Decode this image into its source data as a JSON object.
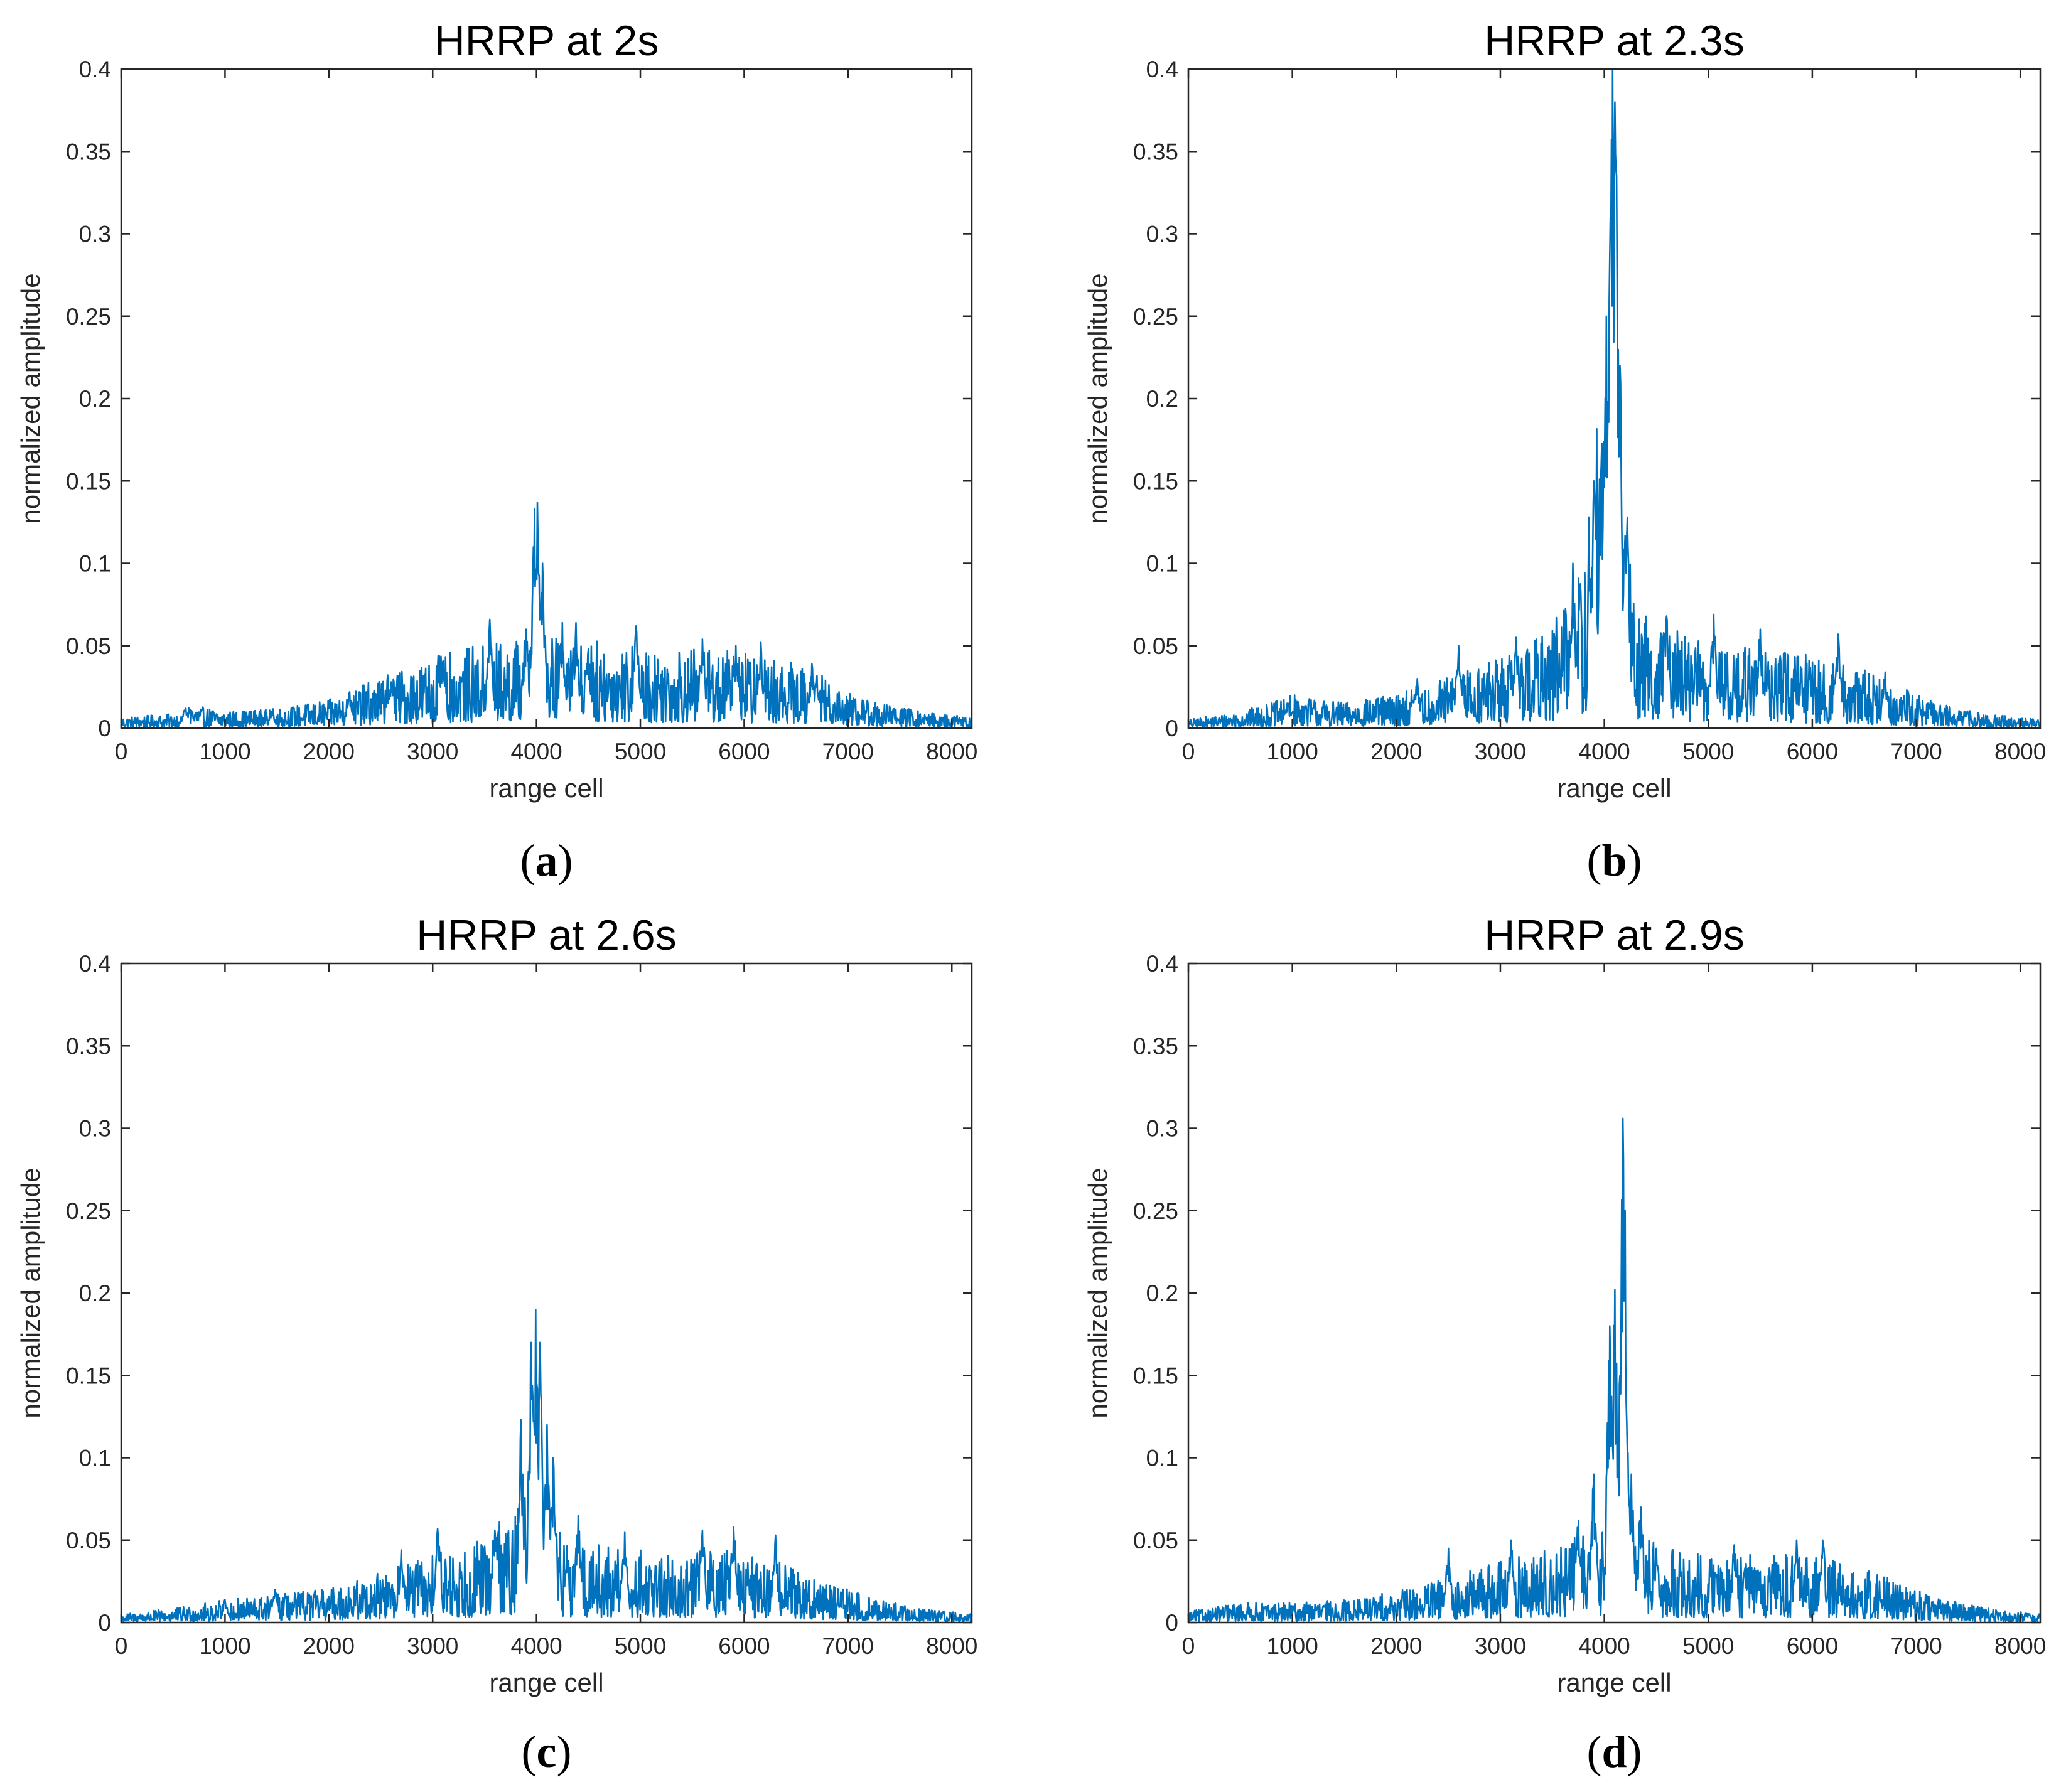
{
  "series_color": "#0072BD",
  "chart_data": [
    {
      "type": "line",
      "title": "HRRP at 2s",
      "xlabel": "range cell",
      "ylabel": "normalized amplitude",
      "panel_label": {
        "open": "(",
        "letter": "a",
        "close": ")"
      },
      "xlim": [
        0,
        8192
      ],
      "ylim": [
        0,
        0.4
      ],
      "xticks": [
        0,
        1000,
        2000,
        3000,
        4000,
        5000,
        6000,
        7000,
        8000
      ],
      "xtick_labels": [
        "0",
        "1000",
        "2000",
        "3000",
        "4000",
        "5000",
        "6000",
        "7000",
        "8000"
      ],
      "yticks": [
        0,
        0.05,
        0.1,
        0.15,
        0.2,
        0.25,
        0.3,
        0.35,
        0.4
      ],
      "ytick_labels": [
        "0",
        "0.05",
        "0.1",
        "0.15",
        "0.2",
        "0.25",
        "0.3",
        "0.35",
        "0.4"
      ],
      "series": [
        {
          "name": "HRRP",
          "envelope_x": [
            0,
            500,
            700,
            1000,
            1500,
            2000,
            2500,
            3000,
            3500,
            3900,
            4300,
            4800,
            5200,
            5600,
            6000,
            6400,
            6800,
            7200,
            7700,
            8192
          ],
          "envelope_y": [
            0.004,
            0.005,
            0.008,
            0.006,
            0.007,
            0.01,
            0.018,
            0.025,
            0.03,
            0.032,
            0.032,
            0.03,
            0.028,
            0.028,
            0.027,
            0.024,
            0.018,
            0.01,
            0.006,
            0.004
          ],
          "peaks_x": [
            620,
            1450,
            2200,
            2600,
            3100,
            3550,
            3900,
            3980,
            4010,
            4060,
            4250,
            4380,
            4500,
            4960,
            5600,
            5920,
            6160,
            6650
          ],
          "peaks_y": [
            0.012,
            0.01,
            0.022,
            0.028,
            0.041,
            0.066,
            0.06,
            0.133,
            0.137,
            0.1,
            0.064,
            0.064,
            0.048,
            0.062,
            0.054,
            0.05,
            0.052,
            0.039
          ]
        }
      ]
    },
    {
      "type": "line",
      "title": "HRRP at 2.3s",
      "xlabel": "range cell",
      "ylabel": "normalized amplitude",
      "panel_label": {
        "open": "(",
        "letter": "b",
        "close": ")"
      },
      "xlim": [
        0,
        8192
      ],
      "ylim": [
        0,
        0.4
      ],
      "xticks": [
        0,
        1000,
        2000,
        3000,
        4000,
        5000,
        6000,
        7000,
        8000
      ],
      "xtick_labels": [
        "0",
        "1000",
        "2000",
        "3000",
        "4000",
        "5000",
        "6000",
        "7000",
        "8000"
      ],
      "yticks": [
        0,
        0.05,
        0.1,
        0.15,
        0.2,
        0.25,
        0.3,
        0.35,
        0.4
      ],
      "ytick_labels": [
        "0",
        "0.05",
        "0.1",
        "0.15",
        "0.2",
        "0.25",
        "0.3",
        "0.35",
        "0.4"
      ],
      "series": [
        {
          "name": "HRRP",
          "envelope_x": [
            0,
            500,
            900,
            1000,
            1500,
            2000,
            2500,
            3000,
            3500,
            3800,
            3950,
            4100,
            4300,
            4700,
            5200,
            5600,
            6000,
            6400,
            6800,
            7200,
            7700,
            8192
          ],
          "envelope_y": [
            0.003,
            0.006,
            0.01,
            0.012,
            0.009,
            0.012,
            0.018,
            0.026,
            0.036,
            0.06,
            0.12,
            0.12,
            0.045,
            0.035,
            0.03,
            0.028,
            0.026,
            0.022,
            0.016,
            0.009,
            0.005,
            0.003
          ],
          "peaks_x": [
            950,
            2200,
            2600,
            3150,
            3700,
            3900,
            3970,
            4020,
            4060,
            4080,
            4100,
            4120,
            4150,
            4220,
            4600,
            5050,
            5500,
            6250,
            6700
          ],
          "peaks_y": [
            0.015,
            0.03,
            0.05,
            0.055,
            0.1,
            0.15,
            0.16,
            0.25,
            0.31,
            0.4,
            0.38,
            0.335,
            0.22,
            0.128,
            0.068,
            0.069,
            0.06,
            0.057,
            0.034
          ]
        }
      ]
    },
    {
      "type": "line",
      "title": "HRRP at 2.6s",
      "xlabel": "range cell",
      "ylabel": "normalized amplitude",
      "panel_label": {
        "open": "(",
        "letter": "c",
        "close": ")"
      },
      "xlim": [
        0,
        8192
      ],
      "ylim": [
        0,
        0.4
      ],
      "xticks": [
        0,
        1000,
        2000,
        3000,
        4000,
        5000,
        6000,
        7000,
        8000
      ],
      "xtick_labels": [
        "0",
        "1000",
        "2000",
        "3000",
        "4000",
        "5000",
        "6000",
        "7000",
        "8000"
      ],
      "yticks": [
        0,
        0.05,
        0.1,
        0.15,
        0.2,
        0.25,
        0.3,
        0.35,
        0.4
      ],
      "ytick_labels": [
        "0",
        "0.05",
        "0.1",
        "0.15",
        "0.2",
        "0.25",
        "0.3",
        "0.35",
        "0.4"
      ],
      "series": [
        {
          "name": "HRRP",
          "envelope_x": [
            0,
            500,
            1000,
            1500,
            2000,
            2500,
            3000,
            3500,
            3850,
            4050,
            4300,
            4800,
            5200,
            5600,
            6000,
            6400,
            6800,
            7200,
            7700,
            8192
          ],
          "envelope_y": [
            0.003,
            0.005,
            0.008,
            0.01,
            0.012,
            0.018,
            0.024,
            0.03,
            0.045,
            0.045,
            0.03,
            0.026,
            0.025,
            0.026,
            0.025,
            0.021,
            0.015,
            0.009,
            0.005,
            0.003
          ],
          "peaks_x": [
            1000,
            1480,
            2700,
            3050,
            3600,
            3850,
            3950,
            3990,
            4030,
            4100,
            4160,
            4400,
            4850,
            5600,
            5900,
            6300
          ],
          "peaks_y": [
            0.014,
            0.02,
            0.044,
            0.057,
            0.056,
            0.123,
            0.17,
            0.19,
            0.17,
            0.12,
            0.1,
            0.065,
            0.055,
            0.056,
            0.058,
            0.053
          ]
        }
      ]
    },
    {
      "type": "line",
      "title": "HRRP at 2.9s",
      "xlabel": "range cell",
      "ylabel": "normalized amplitude",
      "panel_label": {
        "open": "(",
        "letter": "d",
        "close": ")"
      },
      "xlim": [
        0,
        8192
      ],
      "ylim": [
        0,
        0.4
      ],
      "xticks": [
        0,
        1000,
        2000,
        3000,
        4000,
        5000,
        6000,
        7000,
        8000
      ],
      "xtick_labels": [
        "0",
        "1000",
        "2000",
        "3000",
        "4000",
        "5000",
        "6000",
        "7000",
        "8000"
      ],
      "yticks": [
        0,
        0.05,
        0.1,
        0.15,
        0.2,
        0.25,
        0.3,
        0.35,
        0.4
      ],
      "ytick_labels": [
        "0",
        "0.05",
        "0.1",
        "0.15",
        "0.2",
        "0.25",
        "0.3",
        "0.35",
        "0.4"
      ],
      "series": [
        {
          "name": "HRRP",
          "envelope_x": [
            0,
            500,
            1000,
            1500,
            2000,
            2500,
            3000,
            3500,
            3900,
            4250,
            4600,
            5000,
            5500,
            6000,
            6400,
            6800,
            7200,
            7700,
            8192
          ],
          "envelope_y": [
            0.004,
            0.007,
            0.007,
            0.008,
            0.011,
            0.016,
            0.022,
            0.026,
            0.035,
            0.035,
            0.026,
            0.024,
            0.024,
            0.024,
            0.02,
            0.015,
            0.009,
            0.005,
            0.003
          ],
          "peaks_x": [
            2500,
            3100,
            3750,
            3900,
            4050,
            4100,
            4150,
            4180,
            4200,
            4260,
            4350,
            4500,
            5250,
            5850,
            6100
          ],
          "peaks_y": [
            0.045,
            0.05,
            0.062,
            0.09,
            0.18,
            0.202,
            0.15,
            0.306,
            0.25,
            0.09,
            0.07,
            0.045,
            0.047,
            0.05,
            0.05
          ]
        }
      ]
    }
  ]
}
